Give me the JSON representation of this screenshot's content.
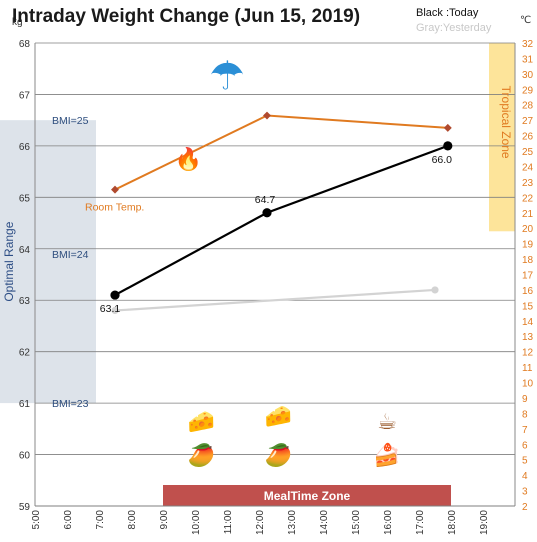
{
  "chart_data": {
    "type": "line",
    "title": "Intraday Weight Change (Jun 15, 2019)",
    "legend": {
      "today": "Black :Today",
      "yesterday": "Gray:Yesterday"
    },
    "y_left": {
      "unit": "kg",
      "range": [
        59,
        68
      ],
      "ticks": [
        59,
        60,
        61,
        62,
        63,
        64,
        65,
        66,
        67,
        68
      ]
    },
    "y_right": {
      "unit": "℃",
      "range": [
        2,
        32
      ],
      "ticks": [
        2,
        3,
        4,
        5,
        6,
        7,
        8,
        9,
        10,
        11,
        12,
        13,
        14,
        15,
        16,
        17,
        18,
        19,
        20,
        21,
        22,
        23,
        24,
        25,
        26,
        27,
        28,
        29,
        30,
        31,
        32
      ]
    },
    "x_axis": {
      "ticks": [
        "5:00",
        "6:00",
        "7:00",
        "8:00",
        "9:00",
        "10:00",
        "11:00",
        "12:00",
        "13:00",
        "14:00",
        "15:00",
        "16:00",
        "17:00",
        "18:00",
        "19:00"
      ]
    },
    "series": [
      {
        "key": "today",
        "color": "#000000",
        "x": [
          7.5,
          12.25,
          17.9
        ],
        "y": [
          63.1,
          64.7,
          66.0
        ],
        "labels": [
          "63.1",
          "64.7",
          "66.0"
        ]
      },
      {
        "key": "yesterday",
        "color": "#d3d3d3",
        "x": [
          7.5,
          17.5
        ],
        "y": [
          62.8,
          63.2
        ]
      },
      {
        "key": "temperature",
        "name": "Room Temp.",
        "color": "#e07a20",
        "axis": "right",
        "x": [
          7.5,
          12.25,
          17.9
        ],
        "y": [
          22.5,
          27.3,
          26.5
        ]
      }
    ],
    "bands": [
      {
        "label": "Optimal Range",
        "axis": "left",
        "range": [
          61,
          66.5
        ],
        "color": "#dde3ea"
      },
      {
        "label": "Tropical Zone",
        "axis": "right",
        "range": [
          19.8,
          32
        ],
        "color": "#fde49a"
      },
      {
        "label": "MealTime Zone",
        "color": "#c0504d",
        "x_range": [
          9.0,
          18.0
        ]
      }
    ],
    "bmi_lines": [
      {
        "label": "BMI=25",
        "y": 66.5
      },
      {
        "label": "BMI=24",
        "y": 63.9
      },
      {
        "label": "BMI=23",
        "y": 61.0
      }
    ],
    "icons": [
      {
        "name": "umbrella-icon",
        "glyph": "☂",
        "x": 11.0,
        "y": 67.1
      },
      {
        "name": "fireplace-icon",
        "glyph": "🔥",
        "x": 9.8,
        "y": 65.6
      },
      {
        "name": "cheese-icon",
        "glyph": "🧀",
        "x": 10.2,
        "y": 60.5
      },
      {
        "name": "cheese-icon",
        "glyph": "🧀",
        "x": 12.6,
        "y": 60.6
      },
      {
        "name": "coffee-icon",
        "glyph": "☕",
        "x": 16.0,
        "y": 60.5
      },
      {
        "name": "mango-icon",
        "glyph": "🥭",
        "x": 10.2,
        "y": 59.85
      },
      {
        "name": "mango-icon",
        "glyph": "🥭",
        "x": 12.6,
        "y": 59.85
      },
      {
        "name": "cake-icon",
        "glyph": "🍰",
        "x": 16.0,
        "y": 59.85
      }
    ]
  }
}
